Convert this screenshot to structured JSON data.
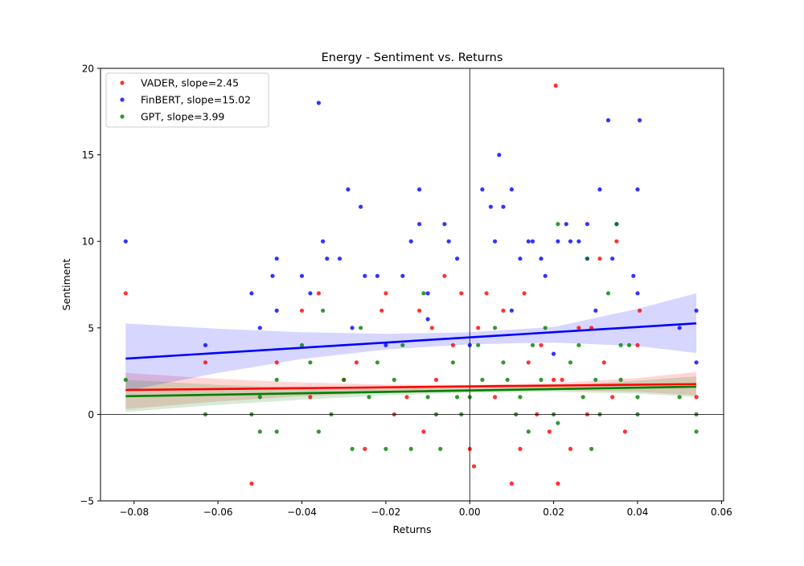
{
  "chart_data": {
    "type": "scatter",
    "title": "Energy - Sentiment vs. Returns",
    "xlabel": "Returns",
    "ylabel": "Sentiment",
    "xlim": [
      -0.088,
      0.0605
    ],
    "ylim": [
      -5,
      20
    ],
    "xticks": [
      -0.08,
      -0.06,
      -0.04,
      -0.02,
      0.0,
      0.02,
      0.04,
      0.06
    ],
    "xtick_labels": [
      "−0.08",
      "−0.06",
      "−0.04",
      "−0.02",
      "0.00",
      "0.02",
      "0.04",
      "0.06"
    ],
    "yticks": [
      -5,
      0,
      5,
      10,
      15,
      20
    ],
    "ytick_labels": [
      "−5",
      "0",
      "5",
      "10",
      "15",
      "20"
    ],
    "reference_lines": {
      "x": 0,
      "y": 0
    },
    "grid": false,
    "legend_position": "top-left",
    "series": [
      {
        "name": "VADER, slope=2.45",
        "color": "#ff0000",
        "fit": {
          "x": [
            -0.082,
            0.054
          ],
          "y": [
            1.41,
            1.75
          ]
        },
        "band": {
          "x": [
            -0.082,
            -0.06,
            -0.04,
            -0.02,
            0.0,
            0.02,
            0.04,
            0.054
          ],
          "lower": [
            0.3,
            0.75,
            1.05,
            1.25,
            1.35,
            1.4,
            1.3,
            1.1
          ],
          "upper": [
            2.4,
            2.05,
            1.85,
            1.72,
            1.7,
            1.8,
            2.1,
            2.45
          ]
        },
        "points": [
          {
            "x": -0.082,
            "y": 7
          },
          {
            "x": -0.063,
            "y": 3
          },
          {
            "x": -0.052,
            "y": -4
          },
          {
            "x": -0.04,
            "y": 6
          },
          {
            "x": -0.036,
            "y": 7
          },
          {
            "x": -0.027,
            "y": 3
          },
          {
            "x": -0.025,
            "y": -2
          },
          {
            "x": -0.021,
            "y": 6
          },
          {
            "x": -0.02,
            "y": 7
          },
          {
            "x": -0.015,
            "y": 1
          },
          {
            "x": -0.012,
            "y": 6
          },
          {
            "x": -0.011,
            "y": -1
          },
          {
            "x": -0.009,
            "y": 5
          },
          {
            "x": -0.006,
            "y": 8
          },
          {
            "x": -0.004,
            "y": 4
          },
          {
            "x": -0.002,
            "y": 7
          },
          {
            "x": 0.0,
            "y": -2
          },
          {
            "x": 0.001,
            "y": -3
          },
          {
            "x": 0.002,
            "y": 5
          },
          {
            "x": 0.004,
            "y": 7
          },
          {
            "x": 0.008,
            "y": 6
          },
          {
            "x": 0.01,
            "y": -4
          },
          {
            "x": 0.012,
            "y": -2
          },
          {
            "x": 0.013,
            "y": 7
          },
          {
            "x": 0.016,
            "y": 0
          },
          {
            "x": 0.017,
            "y": 4
          },
          {
            "x": 0.019,
            "y": -1
          },
          {
            "x": 0.02,
            "y": 2
          },
          {
            "x": 0.0205,
            "y": 19
          },
          {
            "x": 0.021,
            "y": -4
          },
          {
            "x": 0.024,
            "y": -2
          },
          {
            "x": 0.026,
            "y": 5
          },
          {
            "x": 0.029,
            "y": 5
          },
          {
            "x": 0.031,
            "y": 9
          },
          {
            "x": 0.032,
            "y": 3
          },
          {
            "x": 0.034,
            "y": 1
          },
          {
            "x": 0.035,
            "y": 10
          },
          {
            "x": 0.037,
            "y": -1
          },
          {
            "x": 0.04,
            "y": 4
          },
          {
            "x": 0.0405,
            "y": 6
          },
          {
            "x": 0.054,
            "y": 1
          },
          {
            "x": -0.046,
            "y": 3
          },
          {
            "x": -0.038,
            "y": 1
          },
          {
            "x": -0.03,
            "y": 2
          },
          {
            "x": -0.018,
            "y": 0
          },
          {
            "x": -0.008,
            "y": 2
          },
          {
            "x": 0.006,
            "y": 1
          },
          {
            "x": 0.014,
            "y": 3
          },
          {
            "x": 0.022,
            "y": 2
          },
          {
            "x": 0.028,
            "y": 0
          }
        ]
      },
      {
        "name": "FinBERT, slope=15.02",
        "color": "#0000ff",
        "fit": {
          "x": [
            -0.082,
            0.054
          ],
          "y": [
            3.22,
            5.26
          ]
        },
        "band": {
          "x": [
            -0.082,
            -0.06,
            -0.04,
            -0.02,
            0.0,
            0.02,
            0.04,
            0.054
          ],
          "lower": [
            1.35,
            2.4,
            3.2,
            3.75,
            4.05,
            4.15,
            3.95,
            3.55
          ],
          "upper": [
            5.25,
            4.95,
            4.75,
            4.65,
            4.75,
            5.05,
            6.1,
            7.0
          ]
        },
        "points": [
          {
            "x": -0.082,
            "y": 10
          },
          {
            "x": -0.063,
            "y": 4
          },
          {
            "x": -0.052,
            "y": 7
          },
          {
            "x": -0.05,
            "y": 5
          },
          {
            "x": -0.047,
            "y": 8
          },
          {
            "x": -0.046,
            "y": 9
          },
          {
            "x": -0.046,
            "y": 6
          },
          {
            "x": -0.04,
            "y": 8
          },
          {
            "x": -0.038,
            "y": 7
          },
          {
            "x": -0.036,
            "y": 18
          },
          {
            "x": -0.035,
            "y": 10
          },
          {
            "x": -0.034,
            "y": 9
          },
          {
            "x": -0.031,
            "y": 9
          },
          {
            "x": -0.029,
            "y": 13
          },
          {
            "x": -0.026,
            "y": 12
          },
          {
            "x": -0.025,
            "y": 8
          },
          {
            "x": -0.022,
            "y": 8
          },
          {
            "x": -0.016,
            "y": 8
          },
          {
            "x": -0.014,
            "y": 10
          },
          {
            "x": -0.012,
            "y": 13
          },
          {
            "x": -0.012,
            "y": 11
          },
          {
            "x": -0.01,
            "y": 7
          },
          {
            "x": -0.006,
            "y": 11
          },
          {
            "x": -0.005,
            "y": 10
          },
          {
            "x": -0.003,
            "y": 9
          },
          {
            "x": 0.003,
            "y": 13
          },
          {
            "x": 0.005,
            "y": 12
          },
          {
            "x": 0.006,
            "y": 10
          },
          {
            "x": 0.007,
            "y": 15
          },
          {
            "x": 0.008,
            "y": 12
          },
          {
            "x": 0.01,
            "y": 13
          },
          {
            "x": 0.012,
            "y": 9
          },
          {
            "x": 0.014,
            "y": 10
          },
          {
            "x": 0.015,
            "y": 10
          },
          {
            "x": 0.017,
            "y": 9
          },
          {
            "x": 0.018,
            "y": 8
          },
          {
            "x": 0.021,
            "y": 10
          },
          {
            "x": 0.023,
            "y": 11
          },
          {
            "x": 0.024,
            "y": 10
          },
          {
            "x": 0.026,
            "y": 10
          },
          {
            "x": 0.028,
            "y": 11
          },
          {
            "x": 0.028,
            "y": 9
          },
          {
            "x": 0.031,
            "y": 13
          },
          {
            "x": 0.033,
            "y": 17
          },
          {
            "x": 0.034,
            "y": 9
          },
          {
            "x": 0.035,
            "y": 11
          },
          {
            "x": 0.039,
            "y": 8
          },
          {
            "x": 0.04,
            "y": 13
          },
          {
            "x": 0.0405,
            "y": 17
          },
          {
            "x": 0.05,
            "y": 5
          },
          {
            "x": 0.054,
            "y": 6
          },
          {
            "x": 0.054,
            "y": 3
          },
          {
            "x": -0.028,
            "y": 5
          },
          {
            "x": -0.02,
            "y": 4
          },
          {
            "x": -0.01,
            "y": 5.5
          },
          {
            "x": 0.0,
            "y": 4
          },
          {
            "x": 0.01,
            "y": 6
          },
          {
            "x": 0.02,
            "y": 3.5
          },
          {
            "x": 0.03,
            "y": 6
          },
          {
            "x": 0.04,
            "y": 7
          }
        ]
      },
      {
        "name": "GPT, slope=3.99",
        "color": "#008000",
        "fit": {
          "x": [
            -0.082,
            0.054
          ],
          "y": [
            1.05,
            1.6
          ]
        },
        "band": {
          "x": [
            -0.082,
            -0.06,
            -0.04,
            -0.02,
            0.0,
            0.02,
            0.04,
            0.054
          ],
          "lower": [
            0.15,
            0.55,
            0.85,
            1.1,
            1.25,
            1.3,
            1.2,
            1.0
          ],
          "upper": [
            2.0,
            1.7,
            1.55,
            1.5,
            1.52,
            1.62,
            1.95,
            2.2
          ]
        },
        "points": [
          {
            "x": -0.082,
            "y": 2
          },
          {
            "x": -0.063,
            "y": 0
          },
          {
            "x": -0.052,
            "y": 0
          },
          {
            "x": -0.05,
            "y": -1
          },
          {
            "x": -0.05,
            "y": 1
          },
          {
            "x": -0.046,
            "y": -1
          },
          {
            "x": -0.046,
            "y": 2
          },
          {
            "x": -0.04,
            "y": 4
          },
          {
            "x": -0.036,
            "y": -1
          },
          {
            "x": -0.035,
            "y": 6
          },
          {
            "x": -0.033,
            "y": 0
          },
          {
            "x": -0.03,
            "y": 2
          },
          {
            "x": -0.028,
            "y": -2
          },
          {
            "x": -0.026,
            "y": 5
          },
          {
            "x": -0.022,
            "y": 3
          },
          {
            "x": -0.02,
            "y": -2
          },
          {
            "x": -0.016,
            "y": 4
          },
          {
            "x": -0.014,
            "y": -2
          },
          {
            "x": -0.011,
            "y": 7
          },
          {
            "x": -0.01,
            "y": 1
          },
          {
            "x": -0.007,
            "y": -2
          },
          {
            "x": -0.004,
            "y": 3
          },
          {
            "x": -0.002,
            "y": 0
          },
          {
            "x": 0.0,
            "y": 1
          },
          {
            "x": 0.003,
            "y": 2
          },
          {
            "x": 0.006,
            "y": 5
          },
          {
            "x": 0.008,
            "y": 3
          },
          {
            "x": 0.011,
            "y": 0
          },
          {
            "x": 0.012,
            "y": 1
          },
          {
            "x": 0.015,
            "y": 4
          },
          {
            "x": 0.017,
            "y": 2
          },
          {
            "x": 0.02,
            "y": 0
          },
          {
            "x": 0.021,
            "y": 11
          },
          {
            "x": 0.021,
            "y": -0.5
          },
          {
            "x": 0.024,
            "y": 3
          },
          {
            "x": 0.027,
            "y": 1
          },
          {
            "x": 0.029,
            "y": -2
          },
          {
            "x": 0.03,
            "y": 2
          },
          {
            "x": 0.033,
            "y": 7
          },
          {
            "x": 0.035,
            "y": 11
          },
          {
            "x": 0.036,
            "y": 2
          },
          {
            "x": 0.038,
            "y": 4
          },
          {
            "x": 0.04,
            "y": 1
          },
          {
            "x": 0.04,
            "y": 0
          },
          {
            "x": 0.05,
            "y": 1
          },
          {
            "x": 0.054,
            "y": 0
          },
          {
            "x": 0.054,
            "y": -1
          },
          {
            "x": -0.024,
            "y": 1
          },
          {
            "x": -0.018,
            "y": 2
          },
          {
            "x": -0.008,
            "y": 0
          },
          {
            "x": 0.002,
            "y": 4
          },
          {
            "x": 0.009,
            "y": 2
          },
          {
            "x": 0.018,
            "y": 5
          },
          {
            "x": 0.026,
            "y": 4
          },
          {
            "x": 0.031,
            "y": 0
          },
          {
            "x": 0.036,
            "y": 4
          },
          {
            "x": 0.028,
            "y": 9
          },
          {
            "x": -0.038,
            "y": 3
          },
          {
            "x": 0.014,
            "y": -1
          },
          {
            "x": -0.003,
            "y": 1
          }
        ]
      }
    ]
  }
}
